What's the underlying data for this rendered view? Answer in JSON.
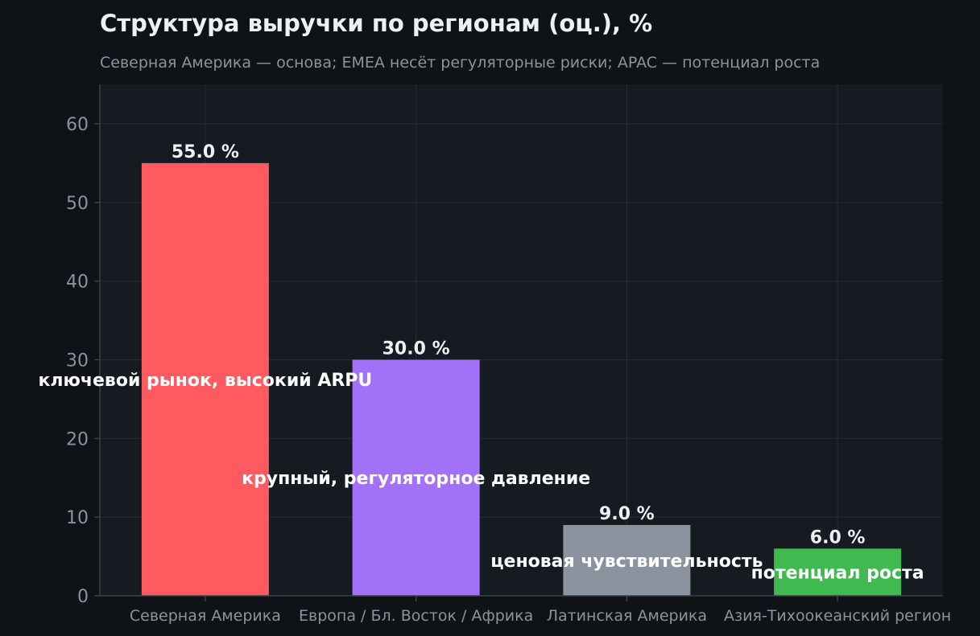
{
  "chart_data": {
    "type": "bar",
    "title": "Структура выручки по регионам (оц.), %",
    "subtitle": "Северная Америка — основа; EMEA несёт регуляторные риски; APAC — потенциал роста",
    "categories": [
      "Северная Америка",
      "Европа / Бл. Восток / Африка",
      "Латинская Америка",
      "Азия-Тихоокеанский регион"
    ],
    "values": [
      55.0,
      30.0,
      9.0,
      6.0
    ],
    "value_labels": [
      "55.0 %",
      "30.0 %",
      "9.0 %",
      "6.0 %"
    ],
    "annotations": [
      "ключевой рынок, высокий ARPU",
      "крупный, регуляторное давление",
      "ценовая чувствительность",
      "потенциал роста"
    ],
    "colors": [
      "#ff5a5f",
      "#a371f7",
      "#8b949e",
      "#3fb950"
    ],
    "ylim": [
      0,
      65
    ],
    "yticks": [
      "0",
      "10",
      "20",
      "30",
      "40",
      "50",
      "60"
    ],
    "xlabel": "",
    "ylabel": "",
    "grid": true,
    "plot_background": "#161b22",
    "page_background": "#0f1317",
    "grid_color": "#262c35",
    "axis_color": "#3a414b"
  }
}
